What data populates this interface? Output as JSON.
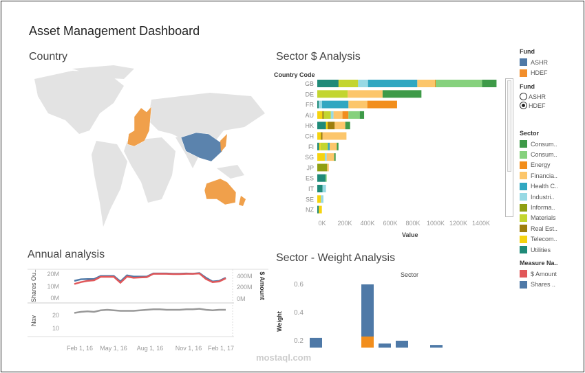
{
  "title": "Asset Management Dashboard",
  "country": {
    "title": "Country"
  },
  "sector_analysis": {
    "title": "Sector $ Analysis",
    "y_header": "Country Code",
    "x_label": "Value",
    "x_ticks": [
      "0K",
      "200K",
      "400K",
      "600K",
      "800K",
      "1000K",
      "1200K",
      "1400K"
    ]
  },
  "annual": {
    "title": "Annual analysis",
    "left_axis": "Shares Ou..",
    "right_axis": "$ Amount",
    "nav_axis": "Nav",
    "shares_ticks": [
      "20M",
      "10M",
      "0M"
    ],
    "amount_ticks": [
      "400M",
      "200M",
      "0M"
    ],
    "nav_ticks": [
      "20",
      "10"
    ],
    "x_ticks": [
      "Feb 1, 16",
      "May 1, 16",
      "Aug 1, 16",
      "Nov 1, 16",
      "Feb 1, 17"
    ]
  },
  "weight": {
    "title": "Sector - Weight Analysis",
    "header": "Sector",
    "y_label": "Weight",
    "y_ticks": [
      "0.6",
      "0.4",
      "0.2"
    ]
  },
  "legend_fund": {
    "title": "Fund",
    "items": [
      {
        "label": "ASHR",
        "color": "#4e79a7"
      },
      {
        "label": "HDEF",
        "color": "#f28e2b"
      }
    ]
  },
  "filter_fund": {
    "title": "Fund",
    "options": [
      {
        "label": "ASHR",
        "selected": false
      },
      {
        "label": "HDEF",
        "selected": true
      }
    ]
  },
  "legend_sector": {
    "title": "Sector",
    "items": [
      {
        "label": "Consum..",
        "color": "#3e9a48"
      },
      {
        "label": "Consum..",
        "color": "#86d17d"
      },
      {
        "label": "Energy",
        "color": "#f28e1c"
      },
      {
        "label": "Financia..",
        "color": "#fcc66b"
      },
      {
        "label": "Health C..",
        "color": "#30a7c1"
      },
      {
        "label": "Industri..",
        "color": "#97d9e4"
      },
      {
        "label": "Informa..",
        "color": "#8f9f12"
      },
      {
        "label": "Materials",
        "color": "#c3d52f"
      },
      {
        "label": "Real Est..",
        "color": "#9d7e0d"
      },
      {
        "label": "Telecom..",
        "color": "#f5d30f"
      },
      {
        "label": "Utilities",
        "color": "#1f8a78"
      }
    ]
  },
  "legend_measure": {
    "title": "Measure Na..",
    "items": [
      {
        "label": "$ Amount",
        "color": "#e15759"
      },
      {
        "label": "Shares ..",
        "color": "#4e79a7"
      }
    ]
  },
  "watermark": "mostaql.com",
  "chart_data": [
    {
      "type": "bar",
      "stacked": true,
      "orientation": "horizontal",
      "title": "Sector $ Analysis",
      "xlabel": "Value",
      "ylabel": "Country Code",
      "xlim": [
        0,
        1520
      ],
      "unit": "K",
      "categories": [
        "GB",
        "DE",
        "FR",
        "AU",
        "HK",
        "CH",
        "FI",
        "SG",
        "JP",
        "ES",
        "IT",
        "SE",
        "NZ"
      ],
      "segments": [
        [
          [
            "Utilities",
            181
          ],
          [
            "Telecom..",
            6
          ],
          [
            "Materials",
            160
          ],
          [
            "Industri..",
            84
          ],
          [
            "Health C..",
            419
          ],
          [
            "Financia..",
            150
          ],
          [
            "Energy",
            6
          ],
          [
            "Consum..2",
            394
          ],
          [
            "Consum..1",
            123
          ]
        ],
        [
          [
            "Materials",
            259
          ],
          [
            "Financia..",
            296
          ],
          [
            "Consum..1",
            330
          ]
        ],
        [
          [
            "Utilities",
            12
          ],
          [
            "Industri..",
            29
          ],
          [
            "Health C..",
            224
          ],
          [
            "Financia..",
            160
          ],
          [
            "Energy",
            253
          ]
        ],
        [
          [
            "Telecom..",
            43
          ],
          [
            "Real Est..",
            12
          ],
          [
            "Materials",
            60
          ],
          [
            "Industri..",
            23
          ],
          [
            "Financia..",
            76
          ],
          [
            "Energy",
            51
          ],
          [
            "Consum..2",
            96
          ],
          [
            "Consum..1",
            37
          ]
        ],
        [
          [
            "Utilities",
            74
          ],
          [
            "Telecom..",
            14
          ],
          [
            "Real Est..",
            60
          ],
          [
            "Financia..",
            90
          ],
          [
            "Consum..1",
            41
          ]
        ],
        [
          [
            "Telecom..",
            31
          ],
          [
            "Real Est..",
            14
          ],
          [
            "Financia..",
            203
          ]
        ],
        [
          [
            "Utilities",
            16
          ],
          [
            "Telecom..",
            12
          ],
          [
            "Materials",
            62
          ],
          [
            "Health C..",
            16
          ],
          [
            "Financia..",
            60
          ],
          [
            "Consum..1",
            14
          ]
        ],
        [
          [
            "Telecom..",
            64
          ],
          [
            "Industri..",
            16
          ],
          [
            "Financia..",
            64
          ],
          [
            "Consum..1",
            12
          ]
        ],
        [
          [
            "Informa..",
            84
          ],
          [
            "Financia..",
            14
          ]
        ],
        [
          [
            "Utilities",
            70
          ],
          [
            "Consum..2",
            10
          ]
        ],
        [
          [
            "Utilities",
            45
          ],
          [
            "Industri..",
            29
          ]
        ],
        [
          [
            "Telecom..",
            31
          ],
          [
            "Industri..",
            21
          ]
        ],
        [
          [
            "Utilities",
            12
          ],
          [
            "Telecom..",
            27
          ]
        ]
      ]
    },
    {
      "type": "line",
      "title": "Annual analysis",
      "x_range": [
        "2016-02-01",
        "2017-02-15"
      ],
      "series": [
        {
          "name": "Shares Outstanding (M)",
          "color": "#4e79a7",
          "values": [
            14.5,
            15.8,
            16,
            16,
            18.5,
            18.5,
            18.5,
            14,
            19,
            18,
            18,
            18,
            20.5,
            20.5,
            20.5,
            20.3,
            20.3,
            20.5,
            20.3,
            20.8,
            17,
            14,
            14.5,
            17
          ]
        },
        {
          "name": "$ Amount (M)",
          "color": "#e15759",
          "scale": 25,
          "values": [
            12,
            13.5,
            14.5,
            15,
            17.8,
            17.8,
            17.8,
            13,
            18,
            17,
            17.3,
            17.5,
            20.2,
            20.3,
            20.2,
            20,
            20,
            20.2,
            20.2,
            20.5,
            16,
            13.5,
            14,
            16.5
          ]
        },
        {
          "name": "Nav",
          "color": "#999999",
          "values": [
            21,
            22,
            22.5,
            22,
            23.5,
            24,
            23.5,
            23,
            23,
            23,
            23.5,
            24,
            24.5,
            24.5,
            24,
            24,
            24,
            24.5,
            24.5,
            25,
            24,
            23.5,
            24,
            24
          ]
        }
      ]
    },
    {
      "type": "bar",
      "title": "Sector - Weight Analysis",
      "xlabel": "Sector",
      "ylabel": "Weight",
      "ylim": [
        0,
        0.65
      ],
      "bars": [
        {
          "ASHR": 0.22,
          "HDEF": 0
        },
        {
          "ASHR": 0.02,
          "HDEF": 0
        },
        {
          "ASHR": 0.37,
          "HDEF": 0.23
        },
        {
          "ASHR": 0.18,
          "HDEF": 0
        },
        {
          "ASHR": 0.2,
          "HDEF": 0
        },
        {
          "ASHR": 0.17,
          "HDEF": 0
        }
      ]
    }
  ]
}
